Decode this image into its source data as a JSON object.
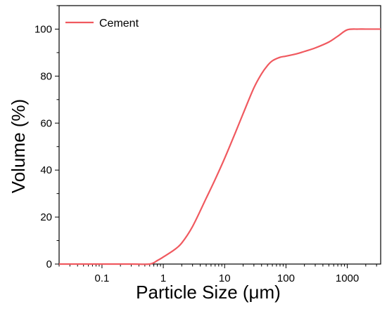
{
  "chart_data": {
    "type": "line",
    "xlabel": "Particle Size (μm)",
    "ylabel": "Volume (%)",
    "x_scale": "log",
    "xlim": [
      0.02,
      3500
    ],
    "ylim": [
      0,
      110
    ],
    "x_ticks": [
      0.1,
      1,
      10,
      100,
      1000
    ],
    "x_tick_labels": [
      "0.1",
      "1",
      "10",
      "100",
      "1000"
    ],
    "y_ticks": [
      0,
      20,
      40,
      60,
      80,
      100
    ],
    "y_tick_labels": [
      "0",
      "20",
      "40",
      "60",
      "80",
      "100"
    ],
    "grid": false,
    "legend_position": "top-left",
    "series": [
      {
        "name": "Cement",
        "color": "#f0595f",
        "x": [
          0.02,
          0.1,
          0.3,
          0.6,
          0.8,
          1.0,
          1.5,
          2.0,
          3.0,
          5.0,
          7.0,
          10,
          15,
          20,
          30,
          40,
          50,
          60,
          80,
          100,
          150,
          200,
          300,
          500,
          700,
          1000,
          1500,
          2000,
          3500
        ],
        "y": [
          0,
          0,
          0,
          0,
          1.5,
          3,
          6,
          9,
          16,
          28,
          36,
          45,
          56,
          64,
          75,
          81,
          84.5,
          86.5,
          88,
          88.5,
          89.5,
          90.5,
          92,
          94.5,
          97,
          99.7,
          100,
          100,
          100
        ]
      }
    ]
  }
}
